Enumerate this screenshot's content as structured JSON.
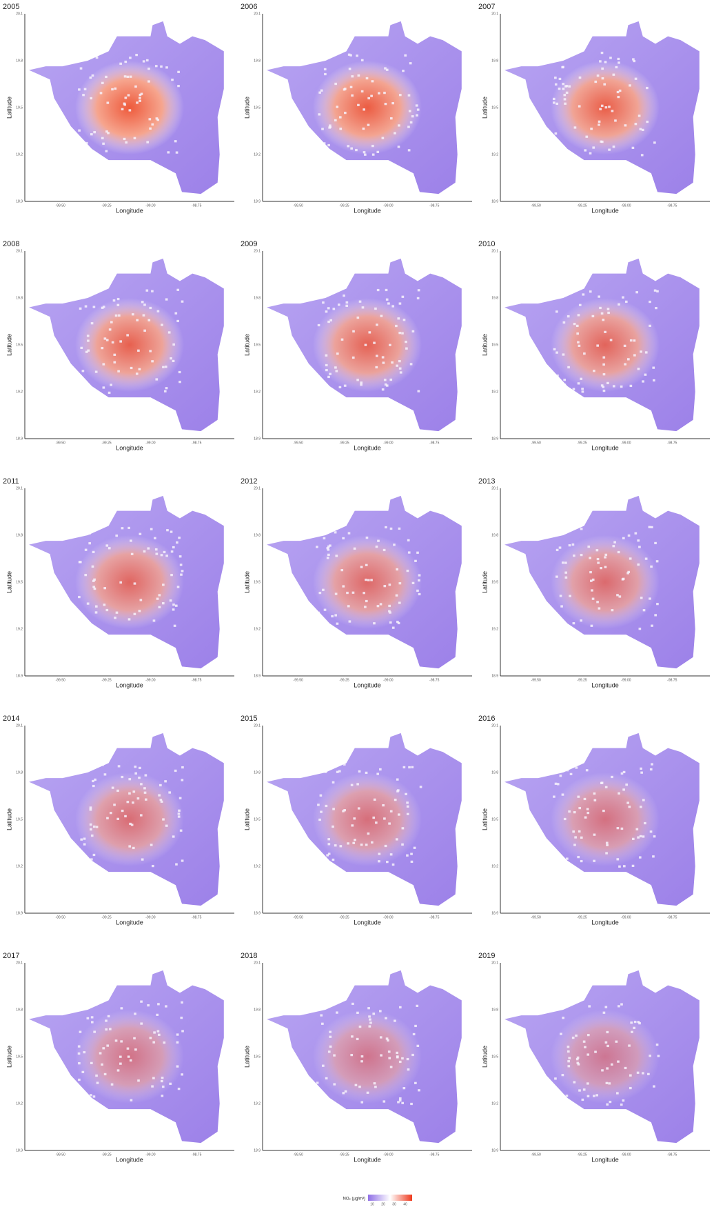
{
  "panels": [
    {
      "title": "2005"
    },
    {
      "title": "2006"
    },
    {
      "title": "2007"
    },
    {
      "title": "2008"
    },
    {
      "title": "2009"
    },
    {
      "title": "2010"
    },
    {
      "title": "2011"
    },
    {
      "title": "2012"
    },
    {
      "title": "2013"
    },
    {
      "title": "2014"
    },
    {
      "title": "2015"
    },
    {
      "title": "2016"
    },
    {
      "title": "2017"
    },
    {
      "title": "2018"
    },
    {
      "title": "2019"
    }
  ],
  "x_label": "Longitude",
  "y_label": "Latitude",
  "xticks": [
    "-99.50",
    "-99.25",
    "-99.00",
    "-98.75"
  ],
  "yticks": [
    "18.9",
    "19.2",
    "19.5",
    "19.8",
    "20.1"
  ],
  "legend": {
    "title": "NO₂ (µg/m³)",
    "ticks": [
      "10",
      "20",
      "30",
      "40"
    ]
  }
}
